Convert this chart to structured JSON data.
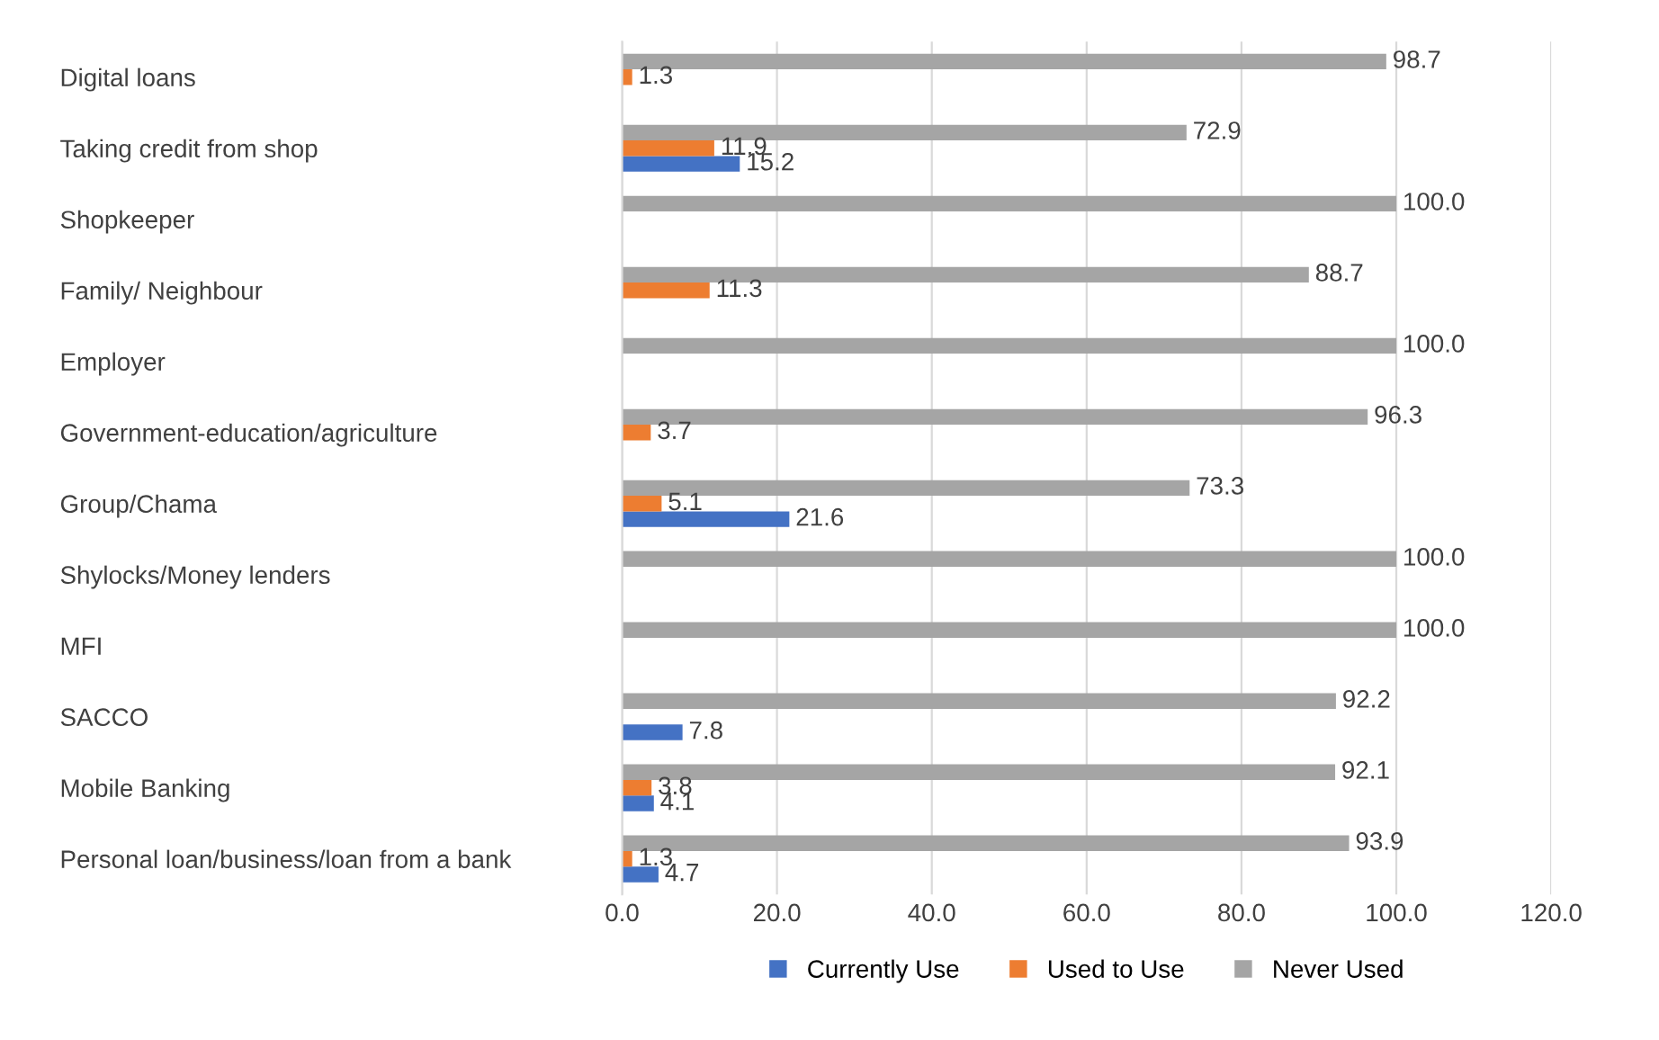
{
  "chart_data": {
    "type": "bar",
    "orientation": "horizontal",
    "categories": [
      "Digital loans",
      "Taking credit from shop",
      "Shopkeeper",
      "Family/ Neighbour",
      "Employer",
      "Government-education/agriculture",
      "Group/Chama",
      "Shylocks/Money lenders",
      "MFI",
      "SACCO",
      "Mobile Banking",
      "Personal loan/business/loan from a bank"
    ],
    "series": [
      {
        "name": "Currently Use",
        "color": "#4472c4",
        "values": [
          0,
          15.2,
          0,
          0,
          0,
          0,
          21.6,
          0,
          0,
          7.8,
          4.1,
          4.7
        ],
        "value_labels": [
          null,
          "15.2",
          null,
          null,
          null,
          null,
          "21.6",
          null,
          null,
          "7.8",
          "4.1",
          "4.7"
        ]
      },
      {
        "name": "Used to Use",
        "color": "#ed7d31",
        "values": [
          1.3,
          11.9,
          0,
          11.3,
          0,
          3.7,
          5.1,
          0,
          0,
          0,
          3.8,
          1.3
        ],
        "value_labels": [
          "1.3",
          "11.9",
          null,
          "11.3",
          null,
          "3.7",
          "5.1",
          null,
          null,
          null,
          "3.8",
          "1.3"
        ]
      },
      {
        "name": "Never Used",
        "color": "#a5a5a5",
        "values": [
          98.7,
          72.9,
          100.0,
          88.7,
          100.0,
          96.3,
          73.3,
          100.0,
          100.0,
          92.2,
          92.1,
          93.9
        ],
        "value_labels": [
          "98.7",
          "72.9",
          "100.0",
          "88.7",
          "100.0",
          "96.3",
          "73.3",
          "100.0",
          "100.0",
          "92.2",
          "92.1",
          "93.9"
        ]
      }
    ],
    "xlim": [
      0,
      120
    ],
    "xticks": [
      {
        "value": 0,
        "label": "0.0"
      },
      {
        "value": 20,
        "label": "20.0"
      },
      {
        "value": 40,
        "label": "40.0"
      },
      {
        "value": 60,
        "label": "60.0"
      },
      {
        "value": 80,
        "label": "80.0"
      },
      {
        "value": 100,
        "label": "100.0"
      },
      {
        "value": 120,
        "label": "120.0"
      }
    ],
    "grid": "x",
    "legend": "bottom"
  }
}
